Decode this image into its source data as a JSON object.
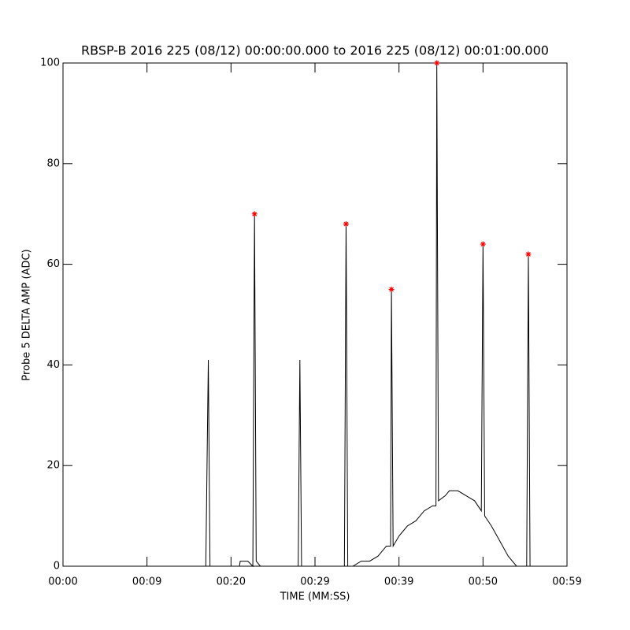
{
  "chart_data": {
    "type": "line",
    "title": "RBSP-B 2016 225 (08/12) 00:00:00.000 to 2016 225 (08/12) 00:01:00.000",
    "x_label": "TIME (MM:SS)",
    "y_label": "Probe 5 DELTA AMP (ADC)",
    "xlim": [
      0,
      60
    ],
    "xticks": [
      {
        "value": 0,
        "label": "00:00"
      },
      {
        "value": 10,
        "label": "00:09"
      },
      {
        "value": 20,
        "label": "00:20"
      },
      {
        "value": 30,
        "label": "00:29"
      },
      {
        "value": 40,
        "label": "00:39"
      },
      {
        "value": 50,
        "label": "00:50"
      },
      {
        "value": 60,
        "label": "00:59"
      }
    ],
    "ylim": [
      0,
      100
    ],
    "yticks": [
      0,
      20,
      40,
      60,
      80,
      100
    ],
    "series": [
      {
        "type": "line",
        "color": "#000000",
        "x": [
          0,
          17.0,
          17.3,
          17.5,
          21.0,
          21.1,
          22.0,
          22.6,
          22.8,
          23.0,
          23.5,
          28.0,
          28.2,
          28.4,
          33.5,
          33.7,
          33.9,
          34.5,
          35.5,
          36.5,
          37.5,
          38.5,
          39.0,
          39.1,
          39.3,
          40.0,
          41.0,
          42.0,
          43.0,
          44.0,
          44.4,
          44.5,
          44.7,
          45.5,
          46.0,
          47.0,
          48.0,
          49.0,
          49.8,
          50.0,
          50.2,
          51.0,
          52.0,
          53.0,
          54.0,
          55.2,
          55.4,
          55.6
        ],
        "values": [
          0,
          0,
          41,
          0,
          0,
          1,
          1,
          0,
          70,
          1,
          0,
          0,
          41,
          0,
          0,
          68,
          0,
          0,
          1,
          1,
          2,
          4,
          4,
          55,
          4,
          6,
          8,
          9,
          11,
          12,
          12,
          100,
          13,
          14,
          15,
          15,
          14,
          13,
          11,
          64,
          10,
          8,
          5,
          2,
          0,
          0,
          62,
          0
        ]
      },
      {
        "type": "scatter",
        "color": "#ff0000",
        "x": [
          22.8,
          33.7,
          39.1,
          44.5,
          50.0,
          55.4
        ],
        "values": [
          70,
          68,
          55,
          100,
          64,
          62
        ]
      }
    ]
  }
}
